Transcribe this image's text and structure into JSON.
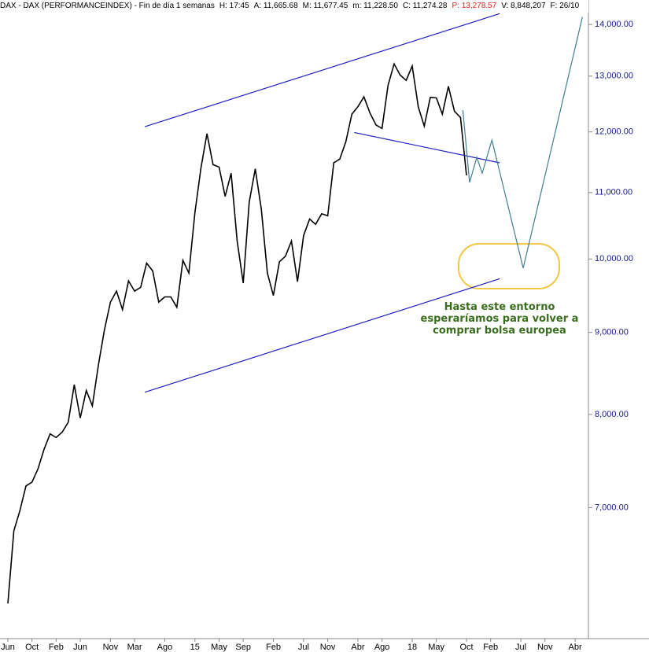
{
  "chart_data": {
    "type": "line",
    "header": [
      {
        "text": "DAX - DAX (PERFORMANCEINDEX) - Fin de día 1 semanas",
        "color": "#000000"
      },
      {
        "text": "H: 17:45",
        "color": "#000000"
      },
      {
        "text": "A: 11,665.68",
        "color": "#000000"
      },
      {
        "text": "M: 11,677.45",
        "color": "#000000"
      },
      {
        "text": "m: 11,228.50",
        "color": "#000000"
      },
      {
        "text": "C: 11,274.28",
        "color": "#000000"
      },
      {
        "text": "P: 13,278.57",
        "color": "#e02020"
      },
      {
        "text": "V: 8,848,207",
        "color": "#000000"
      },
      {
        "text": "F: 26/10",
        "color": "#000000"
      }
    ],
    "annotation": "Hasta este entorno esperaríamos para volver a comprar bolsa europea",
    "log_scale": true,
    "xlim": [
      -1.3,
      96.2
    ],
    "ylim": [
      5800,
      14500
    ],
    "yticks": [
      {
        "value": 7000,
        "label": "7,000.00"
      },
      {
        "value": 8000,
        "label": "8,000.00"
      },
      {
        "value": 9000,
        "label": "9,000.00"
      },
      {
        "value": 10000,
        "label": "10,000.00"
      },
      {
        "value": 11000,
        "label": "11,000.00"
      },
      {
        "value": 12000,
        "label": "12,000.00"
      },
      {
        "value": 13000,
        "label": "13,000.00"
      },
      {
        "value": 14000,
        "label": "14,000.00"
      }
    ],
    "xticks": [
      {
        "value": 0,
        "label": "Jun"
      },
      {
        "value": 4,
        "label": "Oct"
      },
      {
        "value": 8,
        "label": "Feb"
      },
      {
        "value": 12,
        "label": "Jun"
      },
      {
        "value": 17,
        "label": "Nov"
      },
      {
        "value": 21,
        "label": "Mar"
      },
      {
        "value": 26,
        "label": "Ago"
      },
      {
        "value": 31,
        "label": "15"
      },
      {
        "value": 35,
        "label": "May"
      },
      {
        "value": 39,
        "label": "Sep"
      },
      {
        "value": 44,
        "label": "Feb"
      },
      {
        "value": 49,
        "label": "Jul"
      },
      {
        "value": 53,
        "label": "Nov"
      },
      {
        "value": 58,
        "label": "Abr"
      },
      {
        "value": 62,
        "label": "Ago"
      },
      {
        "value": 67,
        "label": "18"
      },
      {
        "value": 71,
        "label": "May"
      },
      {
        "value": 76,
        "label": "Oct"
      },
      {
        "value": 80,
        "label": "Feb"
      },
      {
        "value": 85,
        "label": "Jul"
      },
      {
        "value": 89,
        "label": "Nov"
      },
      {
        "value": 94,
        "label": "Abr"
      }
    ],
    "series": [
      {
        "color": "#000000",
        "x": [
          0,
          1,
          2,
          3,
          4,
          5,
          6,
          7,
          8,
          9,
          10,
          11,
          12,
          13,
          14,
          15,
          16,
          17,
          18,
          19,
          20,
          21,
          22,
          23,
          24,
          25,
          26,
          27,
          28,
          29,
          30,
          31,
          32,
          33,
          34,
          35,
          36,
          37,
          38,
          39,
          40,
          41,
          42,
          43,
          44,
          45,
          46,
          47,
          48,
          49,
          50,
          51,
          52,
          53,
          54,
          55,
          56,
          57,
          58,
          59,
          60,
          61,
          62,
          63,
          64,
          65,
          66,
          67,
          68,
          69,
          70,
          71,
          72,
          73,
          74,
          75,
          76
        ],
        "values": [
          6100,
          6770,
          6970,
          7220,
          7260,
          7400,
          7610,
          7780,
          7740,
          7800,
          7910,
          8350,
          7960,
          8280,
          8100,
          8590,
          9030,
          9400,
          9550,
          9300,
          9690,
          9550,
          9600,
          9940,
          9830,
          9400,
          9470,
          9470,
          9330,
          9980,
          9800,
          10690,
          11400,
          11970,
          11450,
          11410,
          10940,
          11310,
          10260,
          9660,
          10850,
          11380,
          10740,
          9800,
          9490,
          9960,
          10040,
          10260,
          9680,
          10340,
          10590,
          10510,
          10670,
          10640,
          11480,
          11540,
          11830,
          12310,
          12440,
          12620,
          12330,
          12120,
          12060,
          12830,
          13230,
          13020,
          12920,
          13190,
          12440,
          12100,
          12610,
          12600,
          12310,
          12810,
          12360,
          12250,
          11274
        ]
      },
      {
        "color": "#2020c0",
        "x": [
          22.7,
          81.5
        ],
        "values": [
          12090,
          14220
        ]
      },
      {
        "color": "#2020c0",
        "x": [
          22.7,
          81.5
        ],
        "values": [
          8260,
          9720
        ]
      },
      {
        "color": "#2020c0",
        "x": [
          57.4,
          81.5
        ],
        "values": [
          11990,
          11480
        ]
      },
      {
        "color": "#3f7f8c",
        "x": [
          75.4,
          76.5,
          77.7,
          78.6,
          80.2,
          85.4,
          95.2
        ],
        "values": [
          12380,
          11160,
          11570,
          11310,
          11860,
          9870,
          14150
        ]
      }
    ],
    "axis_color": "#1a1a8c"
  }
}
